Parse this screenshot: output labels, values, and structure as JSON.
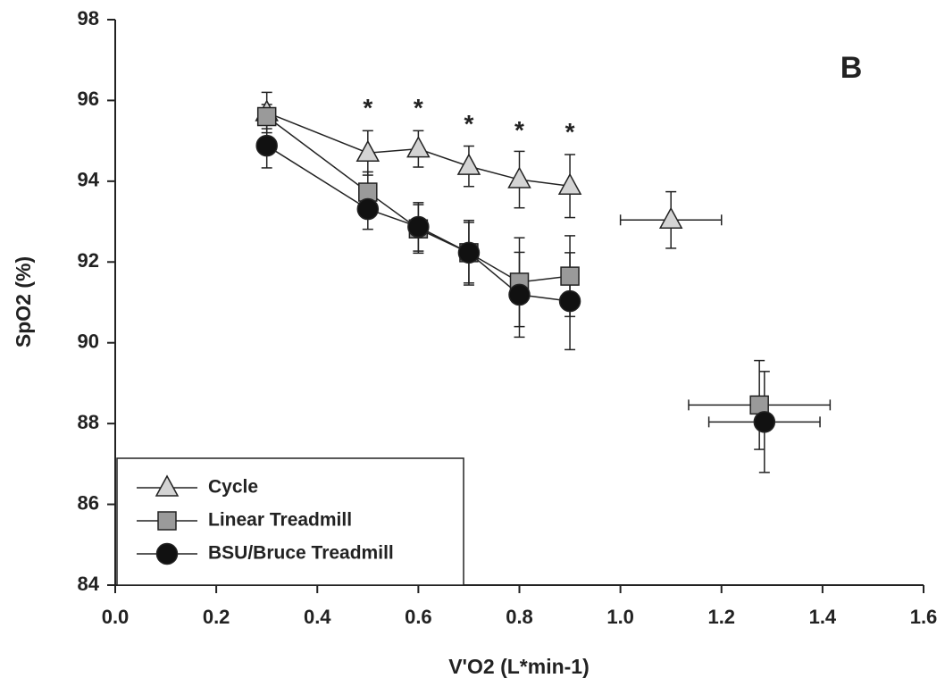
{
  "chart_data": {
    "type": "scatter-line",
    "panel_label": "B",
    "xlabel": "V'O2 (L*min-1)",
    "ylabel": "SpO2 (%)",
    "xlim": [
      0,
      1.6
    ],
    "ylim": [
      84,
      98
    ],
    "xticks": [
      {
        "value": 0,
        "label": "0.0"
      },
      0.2,
      0.4,
      0.6,
      0.8,
      {
        "value": 1,
        "label": "1.0"
      },
      1.2,
      1.4,
      1.6
    ],
    "yticks": [
      84,
      86,
      88,
      90,
      92,
      94,
      96,
      98
    ],
    "legend_position": "lower left",
    "series": [
      {
        "name": "Cycle",
        "color": "#d4d4d4",
        "marker": "triangle",
        "x": [
          0.3,
          0.5,
          0.6,
          0.7,
          0.8,
          0.9,
          null,
          1.1
        ],
        "values": [
          95.7,
          94.7,
          94.8,
          94.37,
          94.04,
          93.88,
          null,
          93.04
        ],
        "errors": [
          0.5,
          0.55,
          0.45,
          0.5,
          0.7,
          0.78,
          null,
          0.7
        ],
        "xerrors": [
          null,
          null,
          null,
          null,
          null,
          null,
          null,
          0.1
        ]
      },
      {
        "name": "Linear Treadmill",
        "color": "#9a9a9a",
        "marker": "square",
        "x": [
          0.3,
          0.5,
          0.6,
          0.7,
          0.8,
          0.9,
          null,
          1.275
        ],
        "values": [
          95.6,
          93.73,
          92.82,
          92.23,
          91.5,
          91.65,
          null,
          88.46
        ],
        "errors": [
          0.3,
          0.5,
          0.6,
          0.8,
          1.1,
          1.0,
          null,
          1.1
        ],
        "xerrors": [
          null,
          null,
          null,
          null,
          null,
          null,
          null,
          0.14
        ]
      },
      {
        "name": "BSU/Bruce Treadmill",
        "color": "#111111",
        "marker": "circle",
        "x": [
          0.3,
          0.5,
          0.6,
          0.7,
          0.8,
          0.9,
          null,
          1.285
        ],
        "values": [
          94.88,
          93.31,
          92.87,
          92.23,
          91.19,
          91.03,
          null,
          88.04
        ],
        "errors": [
          0.55,
          0.5,
          0.6,
          0.75,
          1.05,
          1.2,
          null,
          1.25
        ],
        "xerrors": [
          null,
          null,
          null,
          null,
          null,
          null,
          null,
          0.11
        ]
      }
    ],
    "annotations": [
      {
        "text": "*",
        "x": 0.5,
        "y": 95.95
      },
      {
        "text": "*",
        "x": 0.6,
        "y": 95.95
      },
      {
        "text": "*",
        "x": 0.7,
        "y": 95.55
      },
      {
        "text": "*",
        "x": 0.8,
        "y": 95.4
      },
      {
        "text": "*",
        "x": 0.9,
        "y": 95.35
      }
    ]
  }
}
